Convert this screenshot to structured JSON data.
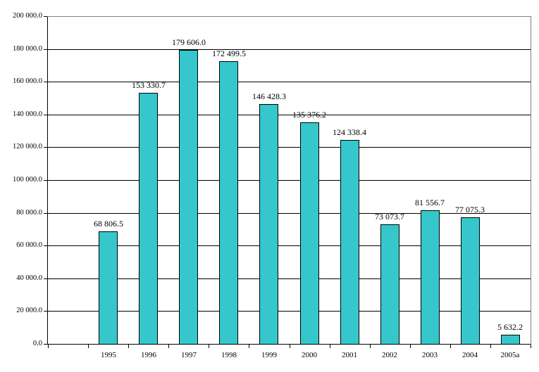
{
  "chart_data": {
    "type": "bar",
    "title": "",
    "xlabel": "",
    "ylabel": "",
    "legend": "none",
    "grid": "horizontal-black-gridlines",
    "plot_border": "gray top and right, black axes left and bottom",
    "categories": [
      "1995",
      "1996",
      "1997",
      "1998",
      "1999",
      "2000",
      "2001",
      "2002",
      "2003",
      "2004",
      "2005a"
    ],
    "values": [
      68806.5,
      153330.7,
      179606.0,
      172499.5,
      146428.3,
      135376.2,
      124338.4,
      73073.7,
      81556.7,
      77075.3,
      5632.2
    ],
    "value_labels": [
      "68 806.5",
      "153 330.7",
      "179 606.0",
      "172 499.5",
      "146 428.3",
      "135 376.2",
      "124 338.4",
      "73 073.7",
      "81 556.7",
      "77 075.3",
      "5 632.2"
    ],
    "ylim": [
      0,
      200000
    ],
    "ytick_step": 20000,
    "ytick_labels": [
      "0.0",
      "20 000.0",
      "40 000.0",
      "60 000.0",
      "80 000.0",
      "100 000.0",
      "120 000.0",
      "140 000.0",
      "160 000.0",
      "180 000.0",
      "200 000.0"
    ],
    "leading_empty_slots": 1,
    "bar_color": "#35C7CB",
    "bar_border_color": "#000000",
    "gridline_color": "#000000",
    "outer_border_color": "#808080",
    "text_color": "#000000",
    "background_color": "#FFFFFF"
  }
}
